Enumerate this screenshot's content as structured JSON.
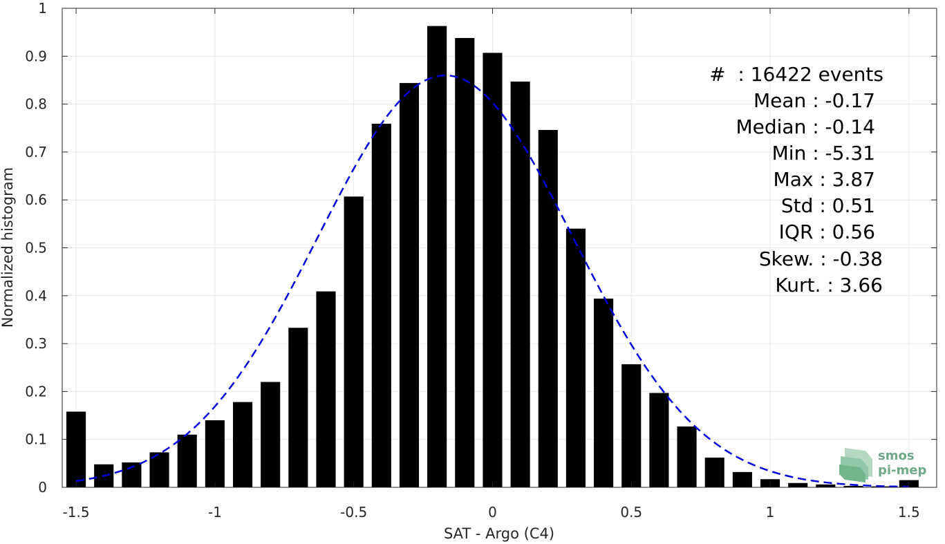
{
  "chart_data": {
    "type": "bar",
    "xlabel": "SAT - Argo (C4)",
    "ylabel": "Normalized histogram",
    "xlim": [
      -1.55,
      1.6
    ],
    "ylim": [
      0,
      1
    ],
    "grid": true,
    "x_ticks": [
      -1.5,
      -1,
      -0.5,
      0,
      0.5,
      1,
      1.5
    ],
    "x_tick_labels": [
      "-1.5",
      "-1",
      "-0.5",
      "0",
      "0.5",
      "1",
      "1.5"
    ],
    "y_ticks": [
      0,
      0.1,
      0.2,
      0.3,
      0.4,
      0.5,
      0.6,
      0.7,
      0.8,
      0.9,
      1
    ],
    "y_tick_labels": [
      "0",
      "0.1",
      "0.2",
      "0.3",
      "0.4",
      "0.5",
      "0.6",
      "0.7",
      "0.8",
      "0.9",
      "1"
    ],
    "bar_color": "#000000",
    "bar_width": 0.07,
    "bars": {
      "x": [
        -1.5,
        -1.4,
        -1.3,
        -1.2,
        -1.1,
        -1.0,
        -0.9,
        -0.8,
        -0.7,
        -0.6,
        -0.5,
        -0.4,
        -0.3,
        -0.2,
        -0.1,
        0.0,
        0.1,
        0.2,
        0.3,
        0.4,
        0.5,
        0.6,
        0.7,
        0.8,
        0.9,
        1.0,
        1.1,
        1.2,
        1.3,
        1.4,
        1.5
      ],
      "values": [
        0.158,
        0.048,
        0.052,
        0.073,
        0.11,
        0.14,
        0.178,
        0.22,
        0.333,
        0.409,
        0.607,
        0.759,
        0.844,
        0.963,
        0.938,
        0.907,
        0.847,
        0.746,
        0.54,
        0.394,
        0.257,
        0.197,
        0.127,
        0.062,
        0.032,
        0.017,
        0.009,
        0.006,
        0.003,
        0.002,
        0.015
      ]
    },
    "fit_curve": {
      "style": "dashed",
      "color": "#0000dd",
      "mean": -0.17,
      "std": 0.46,
      "peak": 0.86,
      "x_range": [
        -1.5,
        1.5
      ]
    },
    "annotations": [
      {
        "label": "#  : 16422 events"
      },
      {
        "label": "Mean : -0.17"
      },
      {
        "label": "Median : -0.14"
      },
      {
        "label": "Min : -5.31"
      },
      {
        "label": "Max : 3.87"
      },
      {
        "label": "Std : 0.51"
      },
      {
        "label": "IQR : 0.56"
      },
      {
        "label": "Skew. : -0.38"
      },
      {
        "label": "Kurt. : 3.66"
      }
    ],
    "logo": {
      "line1": "smos",
      "line2": "pi-mep",
      "color": "#6fa886"
    }
  }
}
